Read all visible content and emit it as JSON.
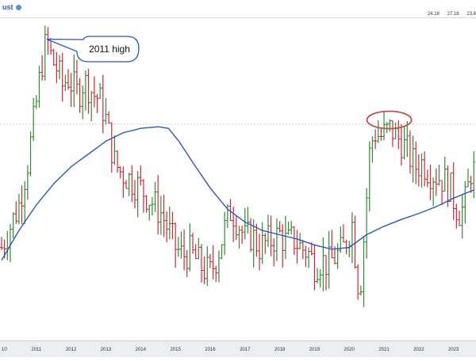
{
  "header": {
    "title_fragment": "ust",
    "values": [
      "24.18",
      "27.18",
      "23.6"
    ]
  },
  "annotation": {
    "label": "2011 high"
  },
  "colors": {
    "up": "#2e8b2e",
    "down": "#d1263a",
    "moving_average": "#2a56c6",
    "callout_border": "#2a56c6",
    "highlight_ellipse": "#c0504d",
    "reference_line": "#bfbfbf"
  },
  "chart_data": {
    "type": "line",
    "xlabel": "",
    "ylabel": "",
    "x_ticks": [
      "10",
      "2011",
      "2012",
      "2013",
      "2014",
      "2015",
      "2016",
      "2017",
      "2018",
      "2019",
      "2020",
      "2021",
      "2022",
      "2023"
    ],
    "xlim": [
      2010.0,
      2023.6
    ],
    "series": [
      {
        "kind": "bars",
        "color_rule": "green when close > open, red otherwise",
        "values": [
          [
            2010.0,
            20.0
          ],
          [
            2010.25,
            22.5
          ],
          [
            2010.5,
            25.0
          ],
          [
            2010.75,
            30.0
          ],
          [
            2011.0,
            37.0
          ],
          [
            2011.15,
            41.5
          ],
          [
            2011.3,
            44.5
          ],
          [
            2011.45,
            42.0
          ],
          [
            2011.6,
            41.0
          ],
          [
            2011.75,
            39.0
          ],
          [
            2011.9,
            40.0
          ],
          [
            2012.05,
            39.0
          ],
          [
            2012.2,
            38.0
          ],
          [
            2012.35,
            39.5
          ],
          [
            2012.5,
            39.0
          ],
          [
            2012.65,
            38.0
          ],
          [
            2012.8,
            37.5
          ],
          [
            2012.95,
            36.0
          ],
          [
            2013.1,
            33.0
          ],
          [
            2013.25,
            30.0
          ],
          [
            2013.4,
            29.0
          ],
          [
            2013.55,
            28.5
          ],
          [
            2013.7,
            28.0
          ],
          [
            2013.85,
            27.5
          ],
          [
            2014.0,
            27.0
          ],
          [
            2014.2,
            26.0
          ],
          [
            2014.4,
            25.0
          ],
          [
            2014.6,
            24.0
          ],
          [
            2014.8,
            22.0
          ],
          [
            2015.0,
            20.0
          ],
          [
            2015.2,
            19.0
          ],
          [
            2015.4,
            19.5
          ],
          [
            2015.6,
            18.5
          ],
          [
            2015.8,
            17.5
          ],
          [
            2016.0,
            17.0
          ],
          [
            2016.2,
            19.0
          ],
          [
            2016.4,
            22.0
          ],
          [
            2016.6,
            24.5
          ],
          [
            2016.8,
            23.0
          ],
          [
            2017.0,
            21.0
          ],
          [
            2017.2,
            21.5
          ],
          [
            2017.4,
            20.0
          ],
          [
            2017.6,
            20.5
          ],
          [
            2017.8,
            21.0
          ],
          [
            2018.0,
            21.5
          ],
          [
            2018.2,
            20.5
          ],
          [
            2018.4,
            21.0
          ],
          [
            2018.6,
            20.0
          ],
          [
            2018.8,
            19.5
          ],
          [
            2019.0,
            18.0
          ],
          [
            2019.2,
            18.5
          ],
          [
            2019.4,
            18.0
          ],
          [
            2019.6,
            19.0
          ],
          [
            2019.8,
            19.5
          ],
          [
            2020.0,
            22.0
          ],
          [
            2020.1,
            23.0
          ],
          [
            2020.2,
            17.5
          ],
          [
            2020.3,
            14.5
          ],
          [
            2020.4,
            20.0
          ],
          [
            2020.5,
            26.0
          ],
          [
            2020.6,
            32.0
          ],
          [
            2020.75,
            33.5
          ],
          [
            2020.9,
            33.0
          ],
          [
            2021.05,
            33.5
          ],
          [
            2021.2,
            34.0
          ],
          [
            2021.35,
            33.0
          ],
          [
            2021.5,
            32.5
          ],
          [
            2021.7,
            31.0
          ],
          [
            2021.9,
            29.5
          ],
          [
            2022.1,
            30.0
          ],
          [
            2022.3,
            29.0
          ],
          [
            2022.5,
            28.5
          ],
          [
            2022.7,
            28.0
          ],
          [
            2022.9,
            27.0
          ],
          [
            2023.05,
            25.0
          ],
          [
            2023.2,
            24.0
          ],
          [
            2023.35,
            25.5
          ],
          [
            2023.5,
            29.0
          ]
        ]
      },
      {
        "kind": "moving-average",
        "values": [
          [
            2010.0,
            18.5
          ],
          [
            2010.5,
            22.0
          ],
          [
            2011.0,
            25.0
          ],
          [
            2011.5,
            27.5
          ],
          [
            2012.0,
            29.5
          ],
          [
            2012.5,
            31.0
          ],
          [
            2013.0,
            32.5
          ],
          [
            2013.5,
            33.5
          ],
          [
            2014.0,
            34.0
          ],
          [
            2014.5,
            34.2
          ],
          [
            2014.8,
            34.0
          ],
          [
            2015.1,
            32.5
          ],
          [
            2015.5,
            30.0
          ],
          [
            2016.0,
            27.0
          ],
          [
            2016.5,
            24.5
          ],
          [
            2017.0,
            23.0
          ],
          [
            2017.5,
            22.0
          ],
          [
            2018.0,
            21.5
          ],
          [
            2018.5,
            21.0
          ],
          [
            2019.0,
            20.3
          ],
          [
            2019.5,
            19.8
          ],
          [
            2020.0,
            20.0
          ],
          [
            2020.5,
            21.5
          ],
          [
            2021.0,
            22.5
          ],
          [
            2021.5,
            23.3
          ],
          [
            2022.0,
            24.0
          ],
          [
            2022.5,
            24.8
          ],
          [
            2023.0,
            25.8
          ],
          [
            2023.6,
            26.8
          ]
        ]
      }
    ],
    "reference_line_y": 34.5,
    "highlight": {
      "x": 2021.15,
      "y": 35.0
    },
    "annotation_target": {
      "x": 2011.3,
      "y": 44.5
    },
    "ylim": [
      10.0,
      46.5
    ],
    "grid": false,
    "legend": "none"
  }
}
